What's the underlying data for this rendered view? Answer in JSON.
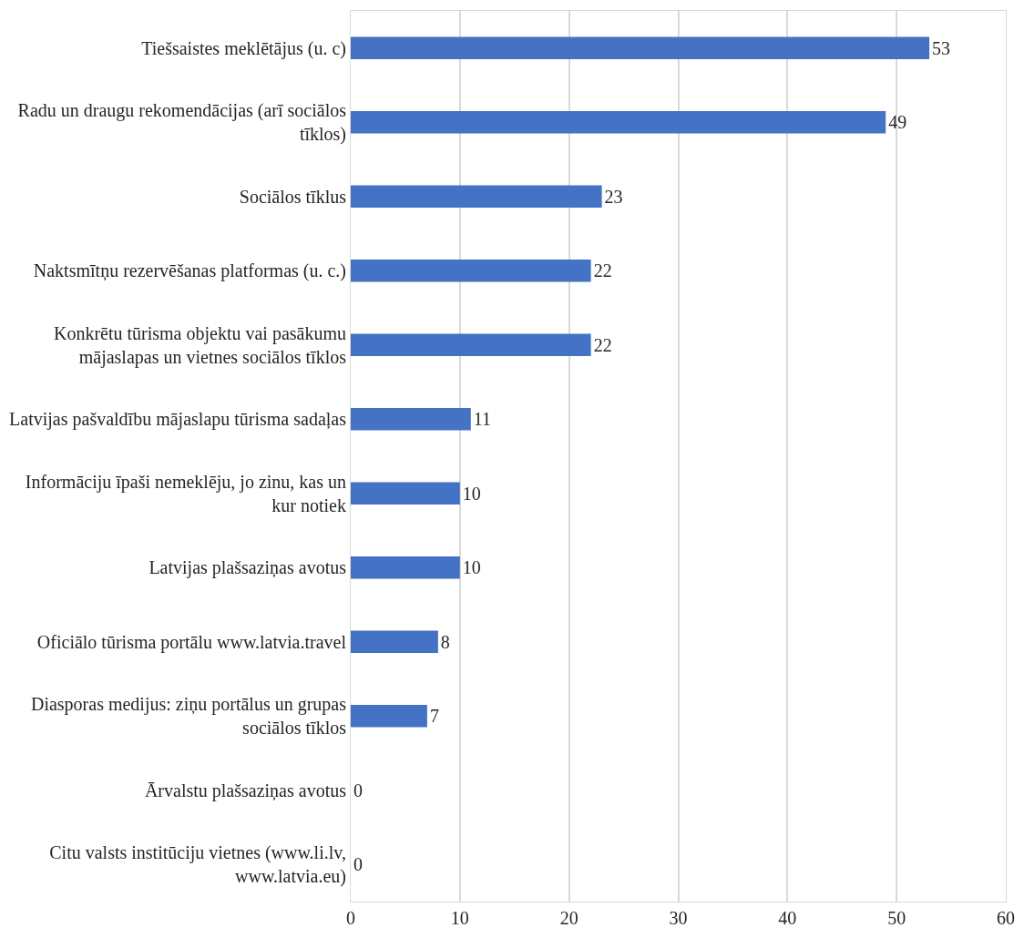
{
  "chart_data": {
    "type": "bar",
    "orientation": "horizontal",
    "categories": [
      "Tiešsaistes meklētājus (u. c)",
      "Radu un draugu rekomendācijas (arī sociālos tīklos)",
      "Sociālos tīklus",
      "Naktsmītņu rezervēšanas platformas (u. c.)",
      "Konkrētu tūrisma objektu vai pasākumu mājaslapas un vietnes sociālos tīklos",
      "Latvijas pašvaldību mājaslapu tūrisma sadaļas",
      "Informāciju īpaši nemeklēju, jo zinu, kas un kur notiek",
      "Latvijas plašsaziņas avotus",
      "Oficiālo tūrisma portālu www.latvia.travel",
      "Diasporas medijus: ziņu portālus un grupas sociālos tīklos",
      "Ārvalstu plašsaziņas avotus",
      "Citu valsts institūciju vietnes (www.li.lv, www.latvia.eu)"
    ],
    "values": [
      53,
      49,
      23,
      22,
      22,
      11,
      10,
      10,
      8,
      7,
      0,
      0
    ],
    "color": "#4472c4",
    "xlim": [
      0,
      60
    ],
    "xticks": [
      0,
      10,
      20,
      30,
      40,
      50,
      60
    ],
    "grid": "x",
    "data_labels": true
  }
}
